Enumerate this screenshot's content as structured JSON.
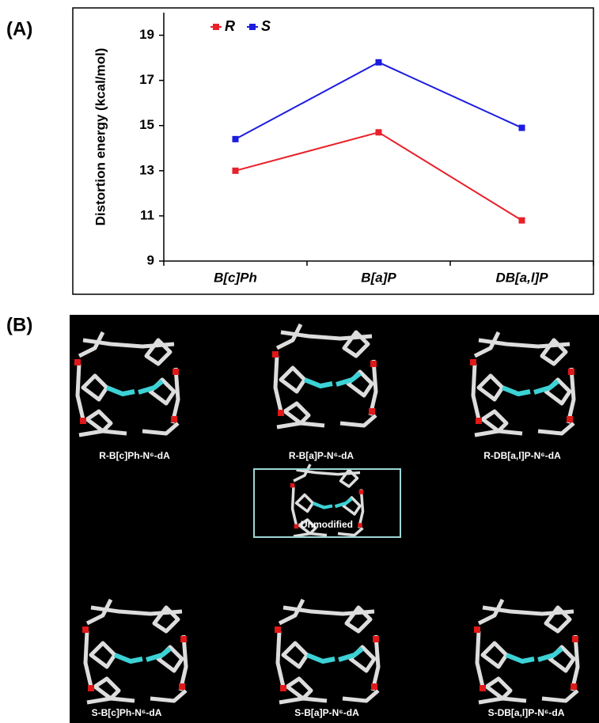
{
  "chart_data": {
    "type": "line",
    "ylabel": "Distortion energy (kcal/mol)",
    "categories": [
      "B[c]Ph",
      "B[a]P",
      "DB[a,l]P"
    ],
    "series": [
      {
        "name": "R",
        "color": "#e8202a",
        "values": [
          13.0,
          14.7,
          10.8
        ]
      },
      {
        "name": "S",
        "color": "#1c1ce0",
        "values": [
          14.4,
          17.8,
          14.9
        ]
      }
    ],
    "ylim": [
      9,
      20
    ],
    "yticks": [
      9,
      11,
      13,
      15,
      17,
      19
    ],
    "grid": false,
    "legend": "upper left"
  },
  "panel_labels": [
    "(A)",
    "(B)"
  ],
  "panel_b": {
    "labels": [
      "R-B[c]Ph-N⁶-dA",
      "R-B[a]P-N⁶-dA",
      "R-DB[a,l]P-N⁶-dA",
      "Unmodified",
      "S-B[c]Ph-N⁶-dA",
      "S-B[a]P-N⁶-dA",
      "S-DB[a,l]P-N⁶-dA"
    ]
  }
}
